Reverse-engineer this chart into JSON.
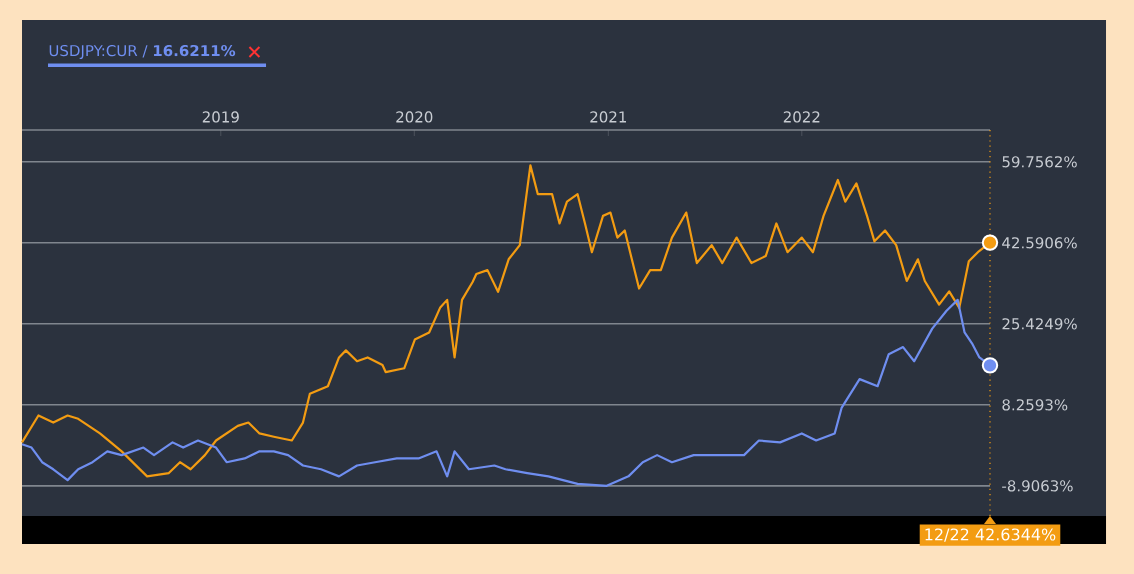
{
  "chart_data": {
    "type": "line",
    "series": [
      {
        "color": "#f39c12",
        "x": [
          "2017-12-22",
          "2018-01-22",
          "2018-02-19",
          "2018-03-18",
          "2018-04-07",
          "2018-05-18",
          "2018-06-28",
          "2018-08-15",
          "2018-09-25",
          "2018-10-16",
          "2018-11-05",
          "2018-12-02",
          "2018-12-23",
          "2019-02-02",
          "2019-02-22",
          "2019-03-15",
          "2019-04-11",
          "2019-05-15",
          "2019-06-05",
          "2019-06-18",
          "2019-07-22",
          "2019-08-12",
          "2019-08-25",
          "2019-09-15",
          "2019-10-05",
          "2019-11-02",
          "2019-11-08",
          "2019-12-13",
          "2020-01-02",
          "2020-01-29",
          "2020-02-19",
          "2020-03-03",
          "2020-03-17",
          "2020-03-31",
          "2020-04-20",
          "2020-04-27",
          "2020-05-18",
          "2020-06-07",
          "2020-06-27",
          "2020-07-18",
          "2020-08-07",
          "2020-08-21",
          "2020-09-17",
          "2020-10-01",
          "2020-10-15",
          "2020-11-04",
          "2020-11-18",
          "2020-12-01",
          "2020-12-22",
          "2021-01-05",
          "2021-01-18",
          "2021-02-01",
          "2021-02-28",
          "2021-03-21",
          "2021-04-10",
          "2021-05-01",
          "2021-05-28",
          "2021-06-17",
          "2021-07-15",
          "2021-08-04",
          "2021-08-31",
          "2021-09-28",
          "2021-10-25",
          "2021-11-14",
          "2021-12-05",
          "2022-01-01",
          "2022-01-22",
          "2022-02-11",
          "2022-03-10",
          "2022-03-24",
          "2022-04-14",
          "2022-05-04",
          "2022-05-18",
          "2022-06-07",
          "2022-06-28",
          "2022-07-18",
          "2022-08-08",
          "2022-08-21",
          "2022-09-17",
          "2022-10-06",
          "2022-10-25",
          "2022-11-12",
          "2022-12-01",
          "2022-12-22"
        ],
        "values": [
          0.3,
          6.0,
          4.5,
          6.0,
          5.3,
          2.2,
          -1.6,
          -6.9,
          -6.2,
          -3.9,
          -5.4,
          -2.4,
          0.7,
          3.8,
          4.5,
          2.2,
          1.5,
          0.7,
          4.5,
          10.6,
          12.2,
          18.3,
          19.8,
          17.5,
          18.3,
          16.7,
          15.2,
          16.0,
          22.1,
          23.6,
          28.9,
          30.5,
          18.3,
          30.5,
          34.3,
          36.0,
          36.8,
          32.2,
          39.1,
          42.1,
          59.0,
          52.9,
          52.9,
          46.7,
          51.3,
          52.9,
          46.7,
          40.6,
          48.3,
          49.0,
          43.7,
          45.2,
          32.9,
          36.8,
          36.8,
          43.7,
          49.0,
          38.3,
          42.1,
          38.3,
          43.7,
          38.3,
          39.8,
          46.7,
          40.6,
          43.7,
          40.6,
          48.3,
          55.9,
          51.3,
          55.2,
          48.3,
          42.9,
          45.2,
          42.1,
          34.5,
          39.1,
          34.5,
          29.5,
          32.3,
          28.8,
          38.7,
          40.8,
          42.6344
        ]
      },
      {
        "name": "USDJPY:CUR / **16.6211%**",
        "color": "#6f8ef0",
        "x": [
          "2017-12-22",
          "2018-01-09",
          "2018-01-29",
          "2018-02-19",
          "2018-03-18",
          "2018-04-07",
          "2018-05-04",
          "2018-06-01",
          "2018-06-28",
          "2018-08-08",
          "2018-08-28",
          "2018-10-02",
          "2018-10-22",
          "2018-11-19",
          "2018-12-23",
          "2019-01-12",
          "2019-02-15",
          "2019-03-15",
          "2019-04-11",
          "2019-05-08",
          "2019-06-05",
          "2019-07-09",
          "2019-08-12",
          "2019-09-15",
          "2019-10-19",
          "2019-11-29",
          "2020-01-09",
          "2020-02-12",
          "2020-03-03",
          "2020-03-17",
          "2020-04-13",
          "2020-05-31",
          "2020-06-21",
          "2020-08-01",
          "2020-09-10",
          "2020-11-04",
          "2020-12-29",
          "2021-02-08",
          "2021-03-07",
          "2021-04-03",
          "2021-05-01",
          "2021-06-11",
          "2021-07-22",
          "2021-09-14",
          "2021-10-12",
          "2021-11-21",
          "2022-01-01",
          "2022-01-28",
          "2022-03-04",
          "2022-03-17",
          "2022-04-20",
          "2022-05-24",
          "2022-06-14",
          "2022-07-11",
          "2022-08-01",
          "2022-09-04",
          "2022-10-01",
          "2022-10-22",
          "2022-11-04",
          "2022-11-18",
          "2022-12-02",
          "2022-12-22"
        ],
        "values": [
          -0.1,
          -0.8,
          -3.9,
          -5.4,
          -7.7,
          -5.4,
          -3.9,
          -1.6,
          -2.4,
          -0.8,
          -2.4,
          0.3,
          -0.8,
          0.7,
          -0.8,
          -3.9,
          -3.1,
          -1.6,
          -1.6,
          -2.4,
          -4.6,
          -5.4,
          -6.9,
          -4.6,
          -3.9,
          -3.1,
          -3.1,
          -1.6,
          -6.9,
          -1.6,
          -5.4,
          -4.6,
          -5.4,
          -6.2,
          -6.9,
          -8.5,
          -8.9,
          -6.9,
          -3.9,
          -2.4,
          -3.9,
          -2.4,
          -2.4,
          -2.4,
          0.7,
          0.3,
          2.2,
          0.7,
          2.2,
          7.6,
          13.7,
          12.2,
          19.0,
          20.5,
          17.5,
          24.4,
          28.2,
          30.5,
          23.6,
          21.3,
          18.3,
          16.6211
        ]
      }
    ],
    "xlim": [
      "2017-12-22",
      "2022-12-22"
    ],
    "xticks": [
      {
        "value": "2019-01-01",
        "label": "2019"
      },
      {
        "value": "2020-01-01",
        "label": "2020"
      },
      {
        "value": "2021-01-01",
        "label": "2021"
      },
      {
        "value": "2022-01-01",
        "label": "2022"
      }
    ],
    "ylim": [
      -15.3,
      66.5
    ],
    "yticks": [
      {
        "value": -8.9063,
        "label": "-8.9063%"
      },
      {
        "value": 8.2593,
        "label": "8.2593%"
      },
      {
        "value": 25.4249,
        "label": "25.4249%"
      },
      {
        "value": 42.5906,
        "label": "42.5906%"
      },
      {
        "value": 59.7562,
        "label": "59.7562%"
      }
    ],
    "grid": "y",
    "legend": "top left",
    "ref_lines": [
      {
        "axis": "x",
        "value": "2022-12-22",
        "label": "12/22 42.6344%",
        "color": "#f39c12",
        "line_style": "dotted"
      }
    ]
  }
}
